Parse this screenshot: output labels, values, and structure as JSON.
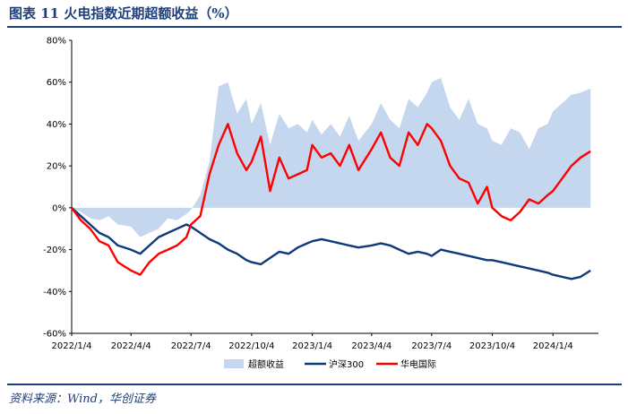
{
  "figure": {
    "title": "图表 11   火电指数近期超额收益（%）",
    "source": "资料来源：Wind，华创证券"
  },
  "colors": {
    "excess_fill": "#c5d6ef",
    "hs300": "#0d3a7d",
    "huadian": "#ff0000",
    "rule": "#1f3f7a"
  },
  "chart_data": {
    "type": "line",
    "title": "火电指数近期超额收益（%）",
    "xlabel": "",
    "ylabel": "",
    "x_ticks": [
      "2022/1/4",
      "2022/4/4",
      "2022/7/4",
      "2022/10/4",
      "2023/1/4",
      "2023/4/4",
      "2023/7/4",
      "2023/10/4",
      "2024/1/4"
    ],
    "y_ticks": [
      "80%",
      "60%",
      "40%",
      "20%",
      "0%",
      "-20%",
      "-40%",
      "-60%"
    ],
    "ylim": [
      -60,
      80
    ],
    "legend_position": "bottom",
    "grid": false,
    "x": [
      "2022/1/4",
      "2022/1/18",
      "2022/2/1",
      "2022/2/15",
      "2022/3/1",
      "2022/3/15",
      "2022/4/4",
      "2022/4/18",
      "2022/5/2",
      "2022/5/16",
      "2022/5/30",
      "2022/6/13",
      "2022/6/27",
      "2022/7/4",
      "2022/7/18",
      "2022/8/1",
      "2022/8/15",
      "2022/8/29",
      "2022/9/12",
      "2022/9/26",
      "2022/10/4",
      "2022/10/18",
      "2022/11/1",
      "2022/11/15",
      "2022/11/29",
      "2022/12/13",
      "2022/12/27",
      "2023/1/4",
      "2023/1/18",
      "2023/2/1",
      "2023/2/15",
      "2023/3/1",
      "2023/3/15",
      "2023/4/4",
      "2023/4/18",
      "2023/5/2",
      "2023/5/16",
      "2023/5/30",
      "2023/6/13",
      "2023/6/27",
      "2023/7/4",
      "2023/7/18",
      "2023/8/1",
      "2023/8/15",
      "2023/8/29",
      "2023/9/12",
      "2023/9/26",
      "2023/10/4",
      "2023/10/18",
      "2023/11/1",
      "2023/11/15",
      "2023/11/29",
      "2023/12/13",
      "2023/12/27",
      "2024/1/4",
      "2024/1/18",
      "2024/2/1",
      "2024/2/15",
      "2024/3/1"
    ],
    "series": [
      {
        "name": "超额收益",
        "style": "area",
        "values": [
          0,
          -2,
          -5,
          -6,
          -4,
          -8,
          -9,
          -14,
          -12,
          -10,
          -5,
          -6,
          -3,
          -1,
          6,
          22,
          58,
          60,
          45,
          52,
          40,
          50,
          30,
          45,
          38,
          40,
          36,
          42,
          35,
          40,
          34,
          44,
          32,
          40,
          50,
          42,
          38,
          52,
          48,
          55,
          60,
          62,
          48,
          42,
          52,
          40,
          38,
          32,
          30,
          38,
          36,
          28,
          38,
          40,
          46,
          50,
          54,
          55,
          57
        ]
      },
      {
        "name": "沪深300",
        "style": "line",
        "values": [
          0,
          -4,
          -8,
          -12,
          -14,
          -18,
          -20,
          -22,
          -18,
          -14,
          -12,
          -10,
          -8,
          -9,
          -12,
          -15,
          -17,
          -20,
          -22,
          -25,
          -26,
          -27,
          -24,
          -21,
          -22,
          -19,
          -17,
          -16,
          -15,
          -16,
          -17,
          -18,
          -19,
          -18,
          -17,
          -18,
          -20,
          -22,
          -21,
          -22,
          -23,
          -20,
          -21,
          -22,
          -23,
          -24,
          -25,
          -25,
          -26,
          -27,
          -28,
          -29,
          -30,
          -31,
          -32,
          -33,
          -34,
          -33,
          -30
        ]
      },
      {
        "name": "华电国际",
        "style": "line",
        "values": [
          0,
          -6,
          -10,
          -16,
          -18,
          -26,
          -30,
          -32,
          -26,
          -22,
          -20,
          -18,
          -14,
          -8,
          -4,
          16,
          30,
          40,
          26,
          18,
          22,
          34,
          8,
          24,
          14,
          16,
          18,
          30,
          24,
          26,
          20,
          30,
          18,
          28,
          36,
          24,
          20,
          36,
          30,
          40,
          38,
          32,
          20,
          14,
          12,
          2,
          10,
          0,
          -4,
          -6,
          -2,
          4,
          2,
          6,
          8,
          14,
          20,
          24,
          27
        ]
      }
    ]
  }
}
